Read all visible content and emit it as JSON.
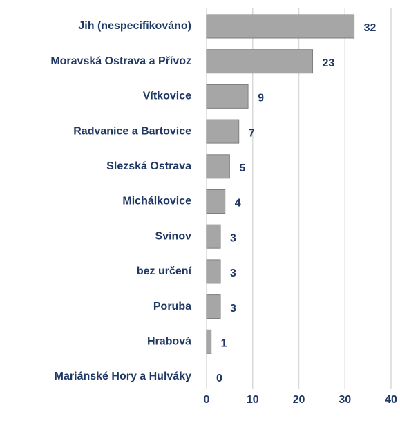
{
  "chart_data": {
    "type": "bar",
    "orientation": "horizontal",
    "categories": [
      "Jih (nespecifikováno)",
      "Moravská Ostrava a Přívoz",
      "Vítkovice",
      "Radvanice a Bartovice",
      "Slezská Ostrava",
      "Michálkovice",
      "Svinov",
      "bez určení",
      "Poruba",
      "Hrabová",
      "Mariánské Hory a Hulváky"
    ],
    "values": [
      32,
      23,
      9,
      7,
      5,
      4,
      3,
      3,
      3,
      1,
      0
    ],
    "color": "#a6a6a6",
    "xlim": [
      0,
      40
    ],
    "xticks": [
      0,
      10,
      20,
      30,
      40
    ],
    "grid": true
  }
}
